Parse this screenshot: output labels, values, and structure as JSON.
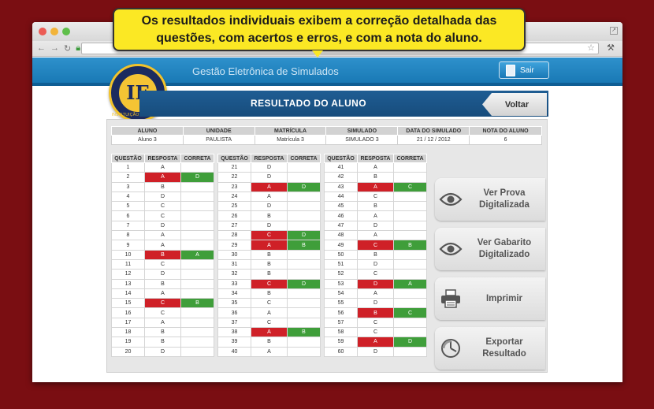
{
  "callout": {
    "line1": "Os resultados individuais exibem a correção detalhada das",
    "line2": "questões, com acertos e erros, e com a nota do aluno."
  },
  "app": {
    "title": "Gestão Eletrônica de Simulados",
    "logout_label": "Sair",
    "logo_letters": "IE",
    "logo_ring_text": "INSTITUIÇÃO DE ENSINO"
  },
  "page": {
    "title": "RESULTADO DO ALUNO",
    "back_label": "Voltar"
  },
  "student": {
    "headers": [
      "ALUNO",
      "UNIDADE",
      "MATRÍCULA",
      "SIMULADO",
      "DATA DO SIMULADO",
      "NOTA DO ALUNO"
    ],
    "values": [
      "Aluno 3",
      "PAULISTA",
      "Matrícula 3",
      "SIMULADO 3",
      "21 / 12 / 2012",
      "6"
    ]
  },
  "questions": {
    "headers": [
      "QUESTÃO",
      "RESPOSTA",
      "CORRETA"
    ],
    "rows": [
      {
        "q": "1",
        "a": "A",
        "c": ""
      },
      {
        "q": "2",
        "a": "A",
        "c": "D"
      },
      {
        "q": "3",
        "a": "B",
        "c": ""
      },
      {
        "q": "4",
        "a": "D",
        "c": ""
      },
      {
        "q": "5",
        "a": "C",
        "c": ""
      },
      {
        "q": "6",
        "a": "C",
        "c": ""
      },
      {
        "q": "7",
        "a": "D",
        "c": ""
      },
      {
        "q": "8",
        "a": "A",
        "c": ""
      },
      {
        "q": "9",
        "a": "A",
        "c": ""
      },
      {
        "q": "10",
        "a": "B",
        "c": "A"
      },
      {
        "q": "11",
        "a": "C",
        "c": ""
      },
      {
        "q": "12",
        "a": "D",
        "c": ""
      },
      {
        "q": "13",
        "a": "B",
        "c": ""
      },
      {
        "q": "14",
        "a": "A",
        "c": ""
      },
      {
        "q": "15",
        "a": "C",
        "c": "B"
      },
      {
        "q": "16",
        "a": "C",
        "c": ""
      },
      {
        "q": "17",
        "a": "A",
        "c": ""
      },
      {
        "q": "18",
        "a": "B",
        "c": ""
      },
      {
        "q": "19",
        "a": "B",
        "c": ""
      },
      {
        "q": "20",
        "a": "D",
        "c": ""
      },
      {
        "q": "21",
        "a": "D",
        "c": ""
      },
      {
        "q": "22",
        "a": "D",
        "c": ""
      },
      {
        "q": "23",
        "a": "A",
        "c": "D"
      },
      {
        "q": "24",
        "a": "A",
        "c": ""
      },
      {
        "q": "25",
        "a": "D",
        "c": ""
      },
      {
        "q": "26",
        "a": "B",
        "c": ""
      },
      {
        "q": "27",
        "a": "D",
        "c": ""
      },
      {
        "q": "28",
        "a": "C",
        "c": "D"
      },
      {
        "q": "29",
        "a": "A",
        "c": "B"
      },
      {
        "q": "30",
        "a": "B",
        "c": ""
      },
      {
        "q": "31",
        "a": "B",
        "c": ""
      },
      {
        "q": "32",
        "a": "B",
        "c": ""
      },
      {
        "q": "33",
        "a": "C",
        "c": "D"
      },
      {
        "q": "34",
        "a": "B",
        "c": ""
      },
      {
        "q": "35",
        "a": "C",
        "c": ""
      },
      {
        "q": "36",
        "a": "A",
        "c": ""
      },
      {
        "q": "37",
        "a": "C",
        "c": ""
      },
      {
        "q": "38",
        "a": "A",
        "c": "B"
      },
      {
        "q": "39",
        "a": "B",
        "c": ""
      },
      {
        "q": "40",
        "a": "A",
        "c": ""
      },
      {
        "q": "41",
        "a": "A",
        "c": ""
      },
      {
        "q": "42",
        "a": "B",
        "c": ""
      },
      {
        "q": "43",
        "a": "A",
        "c": "C"
      },
      {
        "q": "44",
        "a": "C",
        "c": ""
      },
      {
        "q": "45",
        "a": "B",
        "c": ""
      },
      {
        "q": "46",
        "a": "A",
        "c": ""
      },
      {
        "q": "47",
        "a": "D",
        "c": ""
      },
      {
        "q": "48",
        "a": "A",
        "c": ""
      },
      {
        "q": "49",
        "a": "C",
        "c": "B"
      },
      {
        "q": "50",
        "a": "B",
        "c": ""
      },
      {
        "q": "51",
        "a": "D",
        "c": ""
      },
      {
        "q": "52",
        "a": "C",
        "c": ""
      },
      {
        "q": "53",
        "a": "D",
        "c": "A"
      },
      {
        "q": "54",
        "a": "A",
        "c": ""
      },
      {
        "q": "55",
        "a": "D",
        "c": ""
      },
      {
        "q": "56",
        "a": "B",
        "c": "C"
      },
      {
        "q": "57",
        "a": "C",
        "c": ""
      },
      {
        "q": "58",
        "a": "C",
        "c": ""
      },
      {
        "q": "59",
        "a": "A",
        "c": "D"
      },
      {
        "q": "60",
        "a": "D",
        "c": ""
      }
    ]
  },
  "actions": [
    {
      "icon": "eye-icon",
      "label_1": "Ver Prova",
      "label_2": "Digitalizada"
    },
    {
      "icon": "eye-icon",
      "label_1": "Ver Gabarito",
      "label_2": "Digitalizado"
    },
    {
      "icon": "printer-icon",
      "label_1": "Imprimir",
      "label_2": ""
    },
    {
      "icon": "export-icon",
      "label_1": "Exportar",
      "label_2": "Resultado"
    }
  ],
  "colors": {
    "background": "#7a0e12",
    "wrong": "#cf2027",
    "right": "#3f9e3a",
    "header_blue": "#1f5d93",
    "callout": "#fbe824"
  }
}
